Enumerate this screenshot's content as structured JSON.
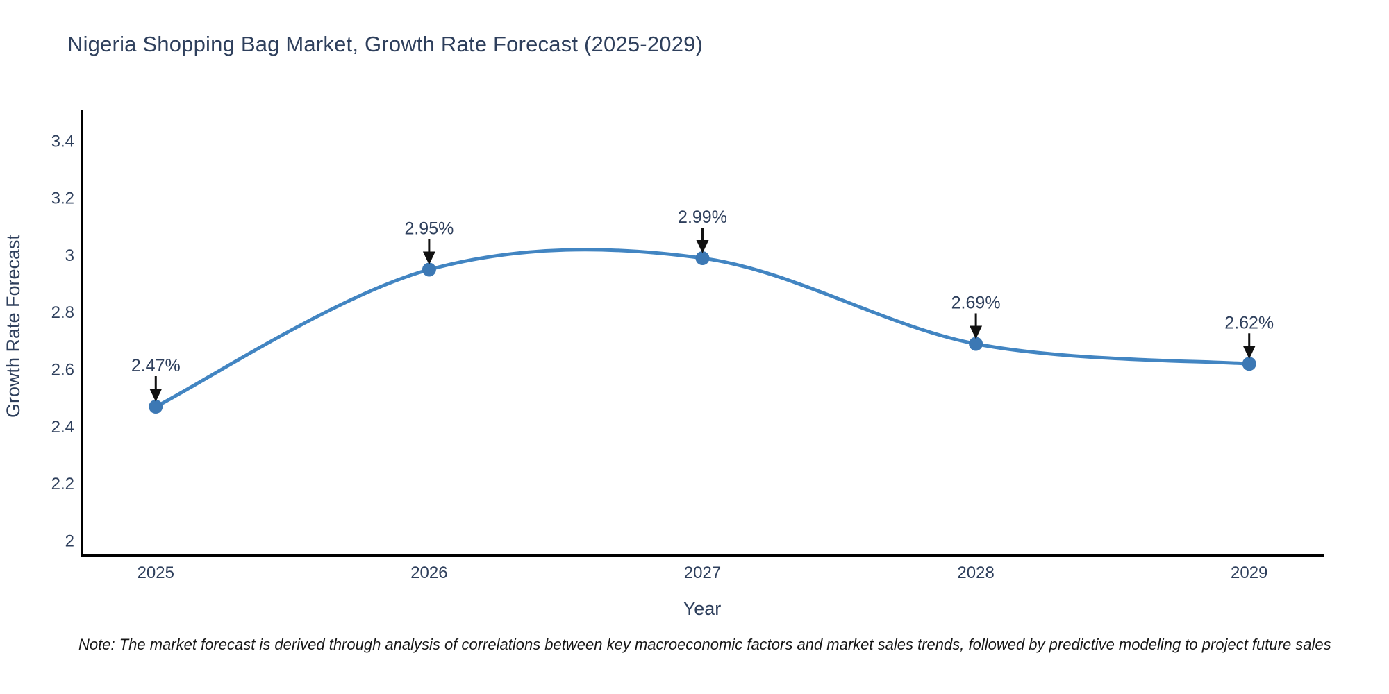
{
  "header": {
    "title": "Nigeria Shopping Bag Market, Growth Rate Forecast (2025-2029)"
  },
  "footer": {
    "note": "Note: The market forecast is derived through analysis of correlations between key macroeconomic factors and market sales trends, followed by predictive modeling to project future sales"
  },
  "chart_data": {
    "type": "line",
    "line_shape": "spline",
    "title": "Nigeria Shopping Bag Market, Growth Rate Forecast (2025-2029)",
    "xlabel": "Year",
    "ylabel": "Growth Rate Forecast",
    "x": [
      2025,
      2026,
      2027,
      2028,
      2029
    ],
    "values": [
      2.47,
      2.95,
      2.99,
      2.69,
      2.62
    ],
    "point_labels": [
      "2.47%",
      "2.95%",
      "2.99%",
      "2.69%",
      "2.62%"
    ],
    "x_tick_labels": [
      "2025",
      "2026",
      "2027",
      "2028",
      "2029"
    ],
    "y_ticks": [
      2,
      2.2,
      2.4,
      2.6,
      2.8,
      3,
      3.2,
      3.4
    ],
    "y_tick_labels": [
      "2",
      "2.2",
      "2.4",
      "2.6",
      "2.8",
      "3",
      "3.2",
      "3.4"
    ],
    "xlim": [
      2024.73,
      2029.27
    ],
    "ylim": [
      1.95,
      3.51
    ],
    "grid": false,
    "legend": "none",
    "colors": {
      "line": "#4285c2",
      "marker": "#3c78b4",
      "annotation_arrow": "#111111",
      "axis_line": "#000000",
      "text": "#2e3f5c",
      "note_text": "#161616",
      "background": "#ffffff"
    }
  }
}
